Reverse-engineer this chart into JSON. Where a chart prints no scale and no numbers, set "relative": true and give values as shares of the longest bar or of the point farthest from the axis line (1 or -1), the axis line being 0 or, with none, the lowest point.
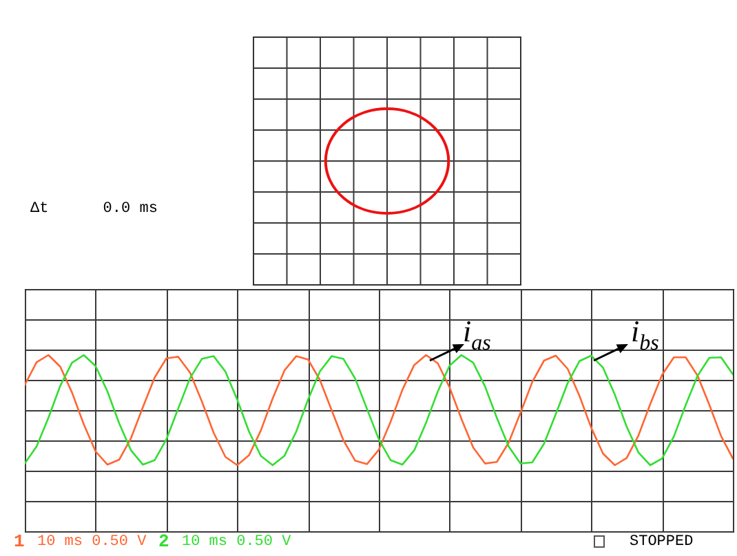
{
  "chart_data": [
    {
      "type": "other",
      "annotations": [
        "Δt      0.0 ms"
      ]
    },
    {
      "type": "line",
      "relative": true,
      "grid": true,
      "legend": "bottom left",
      "categories": [
        null,
        null,
        null,
        null,
        null,
        null,
        null,
        null,
        null,
        null,
        null,
        null,
        null,
        null,
        null,
        null,
        null,
        null,
        null,
        null,
        null,
        null,
        null,
        null,
        null,
        null,
        null,
        null,
        null,
        null,
        null,
        null,
        null,
        null,
        null,
        null,
        null,
        null,
        null,
        null,
        null,
        null,
        null,
        null,
        null,
        null,
        null,
        null,
        null,
        null,
        null,
        null,
        null,
        null,
        null,
        null,
        null,
        null,
        null,
        null,
        null
      ],
      "series": [
        {
          "name": "1",
          "color": "#ff6633",
          "values": [
            0.46,
            0.87,
            1.0,
            0.79,
            0.32,
            -0.26,
            -0.75,
            -0.99,
            -0.9,
            -0.51,
            0.05,
            0.59,
            0.94,
            0.97,
            0.68,
            0.16,
            -0.41,
            -0.85,
            -1.0,
            -0.82,
            -0.37,
            0.21,
            0.72,
            0.98,
            0.92,
            0.55,
            0.0,
            -0.55,
            -0.92,
            -0.98,
            -0.72,
            -0.21,
            0.37,
            0.82,
            1.0,
            0.85,
            0.41,
            -0.16,
            -0.68,
            -0.97,
            -0.94,
            -0.59,
            -0.05,
            0.51,
            0.9,
            0.99,
            0.75,
            0.26,
            -0.32,
            -0.79,
            -1.0,
            -0.87,
            -0.46,
            0.11,
            0.64,
            0.96,
            0.96,
            0.63,
            0.1,
            -0.47,
            -0.88
          ]
        },
        {
          "name": "2",
          "color": "#33dd33",
          "values": [
            -0.97,
            -0.66,
            -0.14,
            0.44,
            0.86,
            1.0,
            0.8,
            0.34,
            -0.24,
            -0.73,
            -0.99,
            -0.91,
            -0.53,
            0.03,
            0.58,
            0.93,
            0.98,
            0.7,
            0.19,
            -0.39,
            -0.83,
            -1.0,
            -0.83,
            -0.39,
            0.19,
            0.7,
            0.98,
            0.93,
            0.57,
            0.02,
            -0.53,
            -0.91,
            -0.99,
            -0.73,
            -0.23,
            0.34,
            0.81,
            1.0,
            0.86,
            0.43,
            -0.14,
            -0.66,
            -0.97,
            -0.95,
            -0.61,
            -0.07,
            0.49,
            0.89,
            0.99,
            0.77,
            0.28,
            -0.3,
            -0.77,
            -1.0,
            -0.88,
            -0.48,
            0.09,
            0.62,
            0.95,
            0.96,
            0.65
          ]
        }
      ],
      "annotations": [
        "i$_{as}$",
        "i$_{bs}$",
        "10 ms 0.50 V",
        "10 ms 0.50 V",
        "STOPPED"
      ]
    }
  ]
}
